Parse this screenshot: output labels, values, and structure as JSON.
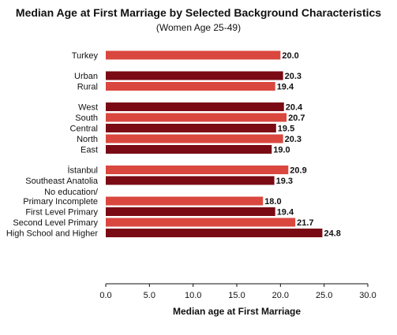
{
  "chart_data": {
    "type": "bar",
    "orientation": "horizontal",
    "title": "Median Age at First Marriage by Selected Background Characteristics",
    "subtitle": "(Women Age 25-49)",
    "xlabel": "Median age at First Marriage",
    "ylabel": "",
    "xlim": [
      0,
      30
    ],
    "xticks": [
      "0.0",
      "5.0",
      "10.0",
      "15.0",
      "20.0",
      "25.0",
      "30.0"
    ],
    "grid": false,
    "legend": "none",
    "colors": {
      "light": "#d9473f",
      "dark": "#7a0a14"
    },
    "groups": [
      {
        "bars": [
          {
            "label": [
              "Turkey"
            ],
            "value": 20.0,
            "value_label": "20.0",
            "color": "light"
          }
        ]
      },
      {
        "bars": [
          {
            "label": [
              "Urban"
            ],
            "value": 20.3,
            "value_label": "20.3",
            "color": "dark"
          },
          {
            "label": [
              "Rural"
            ],
            "value": 19.4,
            "value_label": "19.4",
            "color": "light"
          }
        ]
      },
      {
        "bars": [
          {
            "label": [
              "West"
            ],
            "value": 20.4,
            "value_label": "20.4",
            "color": "dark"
          },
          {
            "label": [
              "South"
            ],
            "value": 20.7,
            "value_label": "20.7",
            "color": "light"
          },
          {
            "label": [
              "Central"
            ],
            "value": 19.5,
            "value_label": "19.5",
            "color": "dark"
          },
          {
            "label": [
              "North"
            ],
            "value": 20.3,
            "value_label": "20.3",
            "color": "light"
          },
          {
            "label": [
              "East"
            ],
            "value": 19.0,
            "value_label": "19.0",
            "color": "dark"
          }
        ]
      },
      {
        "bars": [
          {
            "label": [
              "İstanbul"
            ],
            "value": 20.9,
            "value_label": "20.9",
            "color": "light"
          },
          {
            "label": [
              "Southeast Anatolia"
            ],
            "value": 19.3,
            "value_label": "19.3",
            "color": "dark"
          }
        ]
      },
      {
        "bars": [
          {
            "label": [
              "No education/",
              "Primary Incomplete"
            ],
            "value": 18.0,
            "value_label": "18.0",
            "color": "light"
          },
          {
            "label": [
              "First Level Primary"
            ],
            "value": 19.4,
            "value_label": "19.4",
            "color": "dark"
          },
          {
            "label": [
              "Second Level Primary"
            ],
            "value": 21.7,
            "value_label": "21.7",
            "color": "light"
          },
          {
            "label": [
              "High School and Higher"
            ],
            "value": 24.8,
            "value_label": "24.8",
            "color": "dark"
          }
        ]
      }
    ]
  }
}
